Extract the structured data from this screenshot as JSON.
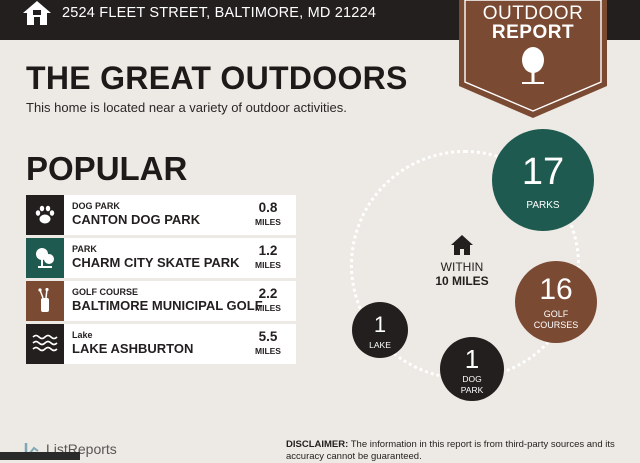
{
  "header": {
    "address": "2524 FLEET STREET, BALTIMORE, MD 21224",
    "home_icon": "home-icon",
    "bar_color": "#231f1e"
  },
  "badge": {
    "line1": "OUTDOOR",
    "line2": "REPORT",
    "icon": "tree-icon",
    "color": "#7a4a33"
  },
  "main": {
    "title": "THE GREAT OUTDOORS",
    "subtitle": "This home is located near a variety of outdoor activities."
  },
  "popular": {
    "heading": "POPULAR",
    "items": [
      {
        "category": "DOG PARK",
        "name": "CANTON DOG PARK",
        "distance": "0.8",
        "unit": "MILES",
        "icon": "paw-icon",
        "icon_color": "#231f1e"
      },
      {
        "category": "PARK",
        "name": "CHARM CITY SKATE PARK",
        "distance": "1.2",
        "unit": "MILES",
        "icon": "park-icon",
        "icon_color": "#1e5a4f"
      },
      {
        "category": "GOLF COURSE",
        "name": "BALTIMORE MUNICIPAL GOLF",
        "distance": "2.2",
        "unit": "MILES",
        "icon": "golf-bag-icon",
        "icon_color": "#7a4a33"
      },
      {
        "category": "Lake",
        "name": "LAKE ASHBURTON",
        "distance": "5.5",
        "unit": "MILES",
        "icon": "water-icon",
        "icon_color": "#231f1e"
      }
    ]
  },
  "summary": {
    "within_line1": "WITHIN",
    "within_line2": "10 MILES",
    "center_icon": "home-icon",
    "circles": [
      {
        "count": "17",
        "label": "PARKS",
        "color": "#1e5a4f"
      },
      {
        "count": "16",
        "label": "GOLF COURSES",
        "color": "#7a4a33"
      },
      {
        "count": "1",
        "label": "DOG PARK",
        "color": "#231f1e"
      },
      {
        "count": "1",
        "label": "LAKE",
        "color": "#231f1e"
      }
    ]
  },
  "footer": {
    "logo_text": "ListReports",
    "disclaimer_label": "DISCLAIMER:",
    "disclaimer_text": "The information in this report is from third-party sources and its accuracy cannot be guaranteed."
  }
}
